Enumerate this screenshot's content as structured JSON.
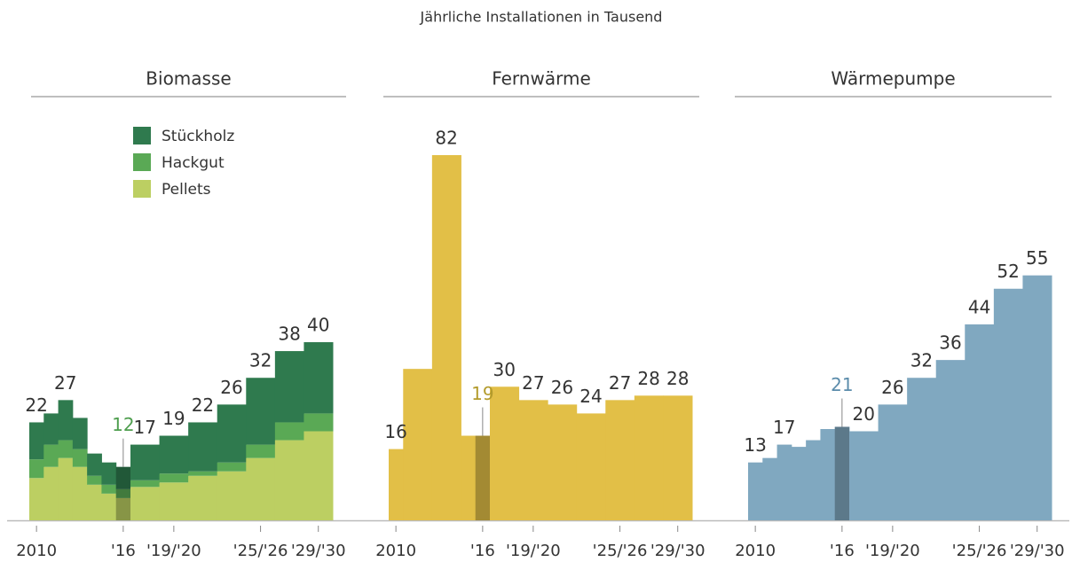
{
  "title": "Jährliche Installationen in Tausend",
  "chart_data": [
    {
      "type": "stacked-step",
      "title": "Biomasse",
      "bins": [
        2010,
        2011,
        2012,
        2013,
        2014,
        2015,
        2016,
        2017,
        2019,
        2021,
        2023,
        2025,
        2027,
        2029,
        2031
      ],
      "categories": [
        "2010",
        null,
        null,
        null,
        null,
        null,
        "'16",
        null,
        "'19/'20",
        null,
        null,
        "'25/'26",
        null,
        "'29/'30"
      ],
      "series": [
        {
          "name": "Stückholz",
          "color": "#2f7a4e",
          "values": [
            8.3,
            7,
            9,
            7,
            5,
            5,
            5,
            8,
            8.5,
            11,
            13,
            15,
            16,
            16
          ]
        },
        {
          "name": "Hackgut",
          "color": "#5aa955",
          "values": [
            4.2,
            5,
            4,
            4,
            2,
            2,
            2,
            1.5,
            2,
            1,
            2,
            3,
            4,
            4
          ]
        },
        {
          "name": "Pellets",
          "color": "#bccf62",
          "values": [
            9.5,
            12,
            14,
            12,
            8,
            6,
            5,
            7.5,
            8.5,
            10,
            11,
            14,
            18,
            20
          ]
        }
      ],
      "totals": [
        22,
        null,
        27,
        null,
        null,
        null,
        12,
        17,
        19,
        22,
        26,
        32,
        38,
        40
      ],
      "highlight": "'16",
      "highlight_color": "#4e9e4e",
      "xlim": [
        2010,
        2031
      ],
      "ylim": [
        0,
        82
      ]
    },
    {
      "type": "step",
      "title": "Fernwärme",
      "color": "#e2bf47",
      "bins": [
        2010,
        2011,
        2013,
        2015,
        2016,
        2017,
        2019,
        2021,
        2023,
        2025,
        2027,
        2029,
        2031
      ],
      "categories": [
        "2010",
        null,
        null,
        null,
        "'16",
        null,
        "'19/'20",
        null,
        null,
        "'25/'26",
        null,
        "'29/'30"
      ],
      "values": [
        16,
        34,
        82,
        19,
        19,
        30,
        27,
        26,
        24,
        27,
        28,
        28
      ],
      "value_labels": [
        "16",
        null,
        "82",
        null,
        "19",
        "30",
        "27",
        "26",
        "24",
        "27",
        "28",
        "28"
      ],
      "highlight": "'16",
      "highlight_color": "#b39b2c",
      "xlim": [
        2010,
        2031
      ],
      "ylim": [
        0,
        82
      ]
    },
    {
      "type": "step",
      "title": "Wärmepumpe",
      "color": "#80a8c0",
      "bins": [
        2010,
        2011,
        2012,
        2013,
        2014,
        2015,
        2016,
        2017,
        2019,
        2021,
        2023,
        2025,
        2027,
        2029,
        2031
      ],
      "categories": [
        "2010",
        null,
        null,
        null,
        null,
        null,
        "'16",
        null,
        "'19/'20",
        null,
        null,
        "'25/'26",
        null,
        "'29/'30"
      ],
      "values": [
        13,
        14,
        17,
        16.5,
        18,
        20.5,
        21,
        20,
        26,
        32,
        36,
        44,
        52,
        55
      ],
      "value_labels": [
        "13",
        null,
        "17",
        null,
        null,
        null,
        "21",
        "20",
        "26",
        "32",
        "36",
        "44",
        "52",
        "55"
      ],
      "highlight": "'16",
      "highlight_color": "#5b8cab",
      "xlim": [
        2010,
        2031
      ],
      "ylim": [
        0,
        82
      ]
    }
  ]
}
